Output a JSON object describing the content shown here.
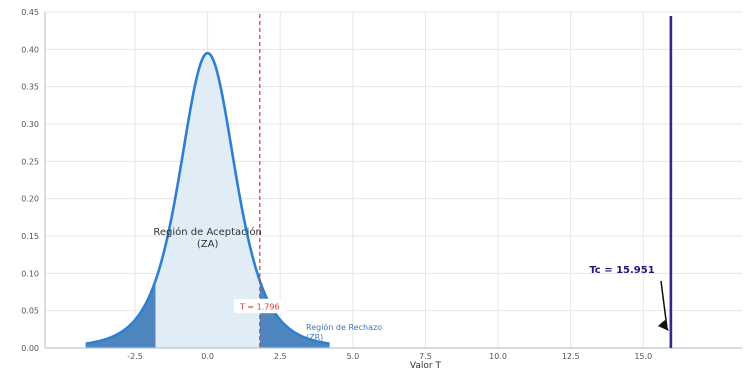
{
  "chart_data": {
    "type": "area",
    "xlabel": "Valor T",
    "ylabel": "",
    "xlim": [
      -5.6,
      18.4
    ],
    "ylim": [
      0,
      0.45
    ],
    "x_ticks": [
      -2.5,
      0,
      2.5,
      5,
      7.5,
      10,
      12.5,
      15
    ],
    "x_tick_labels": [
      "-2.5",
      "0.0",
      "2.5",
      "5.0",
      "7.5",
      "10.0",
      "12.5",
      "15.0"
    ],
    "y_ticks": [
      0,
      0.05,
      0.1,
      0.15,
      0.2,
      0.25,
      0.3,
      0.35,
      0.4,
      0.45
    ],
    "y_tick_labels": [
      "0.00",
      "0.05",
      "0.10",
      "0.15",
      "0.20",
      "0.25",
      "0.30",
      "0.35",
      "0.40",
      "0.45"
    ],
    "grid": true,
    "distribution": {
      "name": "t",
      "peak_y": 0.395,
      "x_range": [
        -4.2,
        4.2
      ],
      "critical_value": 1.796,
      "rejection_tails": [
        -1.796,
        1.796
      ]
    },
    "critical_line": {
      "x": 1.796,
      "label": "T = 1.796"
    },
    "tc_line": {
      "x": 15.951,
      "label": "Tc = 15.951"
    },
    "annotations": {
      "acceptance_label_line1": "Región de Aceptación",
      "acceptance_label_line2": "(ZA)",
      "rejection_label_line1": "Región de Rechazo",
      "rejection_label_line2": "(ZR)"
    },
    "colors": {
      "curve": "#2f7fd1",
      "acceptance_fill": "#dbeaf6",
      "rejection_fill": "#4f86c0",
      "critical_line": "#d33b3b",
      "tc_line": "#2e2a8a",
      "grid": "#e6e6e6",
      "axis": "#b7c6d6",
      "tc_label": "#1d1a78"
    }
  }
}
